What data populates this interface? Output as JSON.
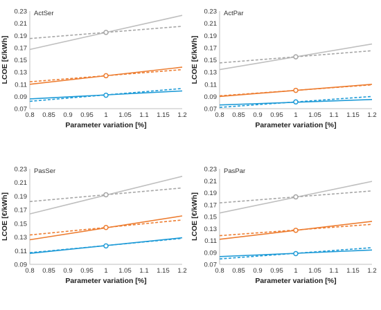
{
  "chart_data": [
    {
      "type": "line",
      "title": "ActSer",
      "xlabel": "Parameter variation [%]",
      "ylabel": "LCOE [€/kWh]",
      "xlim": [
        0.8,
        1.2
      ],
      "ylim": [
        0.07,
        0.23
      ],
      "x_ticks": [
        "0.8",
        "0.85",
        "0.9",
        "0.95",
        "1",
        "1.05",
        "1.1",
        "1.15",
        "1.2"
      ],
      "y_ticks": [
        "0.07",
        "0.09",
        "0.11",
        "0.13",
        "0.15",
        "0.17",
        "0.19",
        "0.21",
        "0.23"
      ],
      "grid": false,
      "x": [
        0.8,
        1.2
      ],
      "series": [
        {
          "color": "#bfbfbf",
          "dash": false,
          "values": [
            0.167,
            0.223
          ]
        },
        {
          "color": "#a6a6a6",
          "dash": true,
          "values": [
            0.185,
            0.205
          ]
        },
        {
          "color": "#ed7d31",
          "dash": false,
          "values": [
            0.11,
            0.138
          ]
        },
        {
          "color": "#ed7d31",
          "dash": true,
          "values": [
            0.114,
            0.134
          ]
        },
        {
          "color": "#1f9bd7",
          "dash": false,
          "values": [
            0.086,
            0.099
          ]
        },
        {
          "color": "#1f9bd7",
          "dash": true,
          "values": [
            0.082,
            0.103
          ]
        }
      ],
      "markers": [
        {
          "x": 1,
          "y": 0.195,
          "color": "#a6a6a6"
        },
        {
          "x": 1,
          "y": 0.124,
          "color": "#ed7d31"
        },
        {
          "x": 1,
          "y": 0.092,
          "color": "#1f9bd7"
        }
      ]
    },
    {
      "type": "line",
      "title": "ActPar",
      "xlabel": "Parameter variation [%]",
      "ylabel": "LCOE [€/kWh]",
      "xlim": [
        0.8,
        1.2
      ],
      "ylim": [
        0.07,
        0.23
      ],
      "x_ticks": [
        "0.8",
        "0.85",
        "0.9",
        "0.95",
        "1",
        "1.05",
        "1.1",
        "1.15",
        "1.2"
      ],
      "y_ticks": [
        "0.07",
        "0.09",
        "0.11",
        "0.13",
        "0.15",
        "0.17",
        "0.19",
        "0.21",
        "0.23"
      ],
      "grid": false,
      "x": [
        0.8,
        1.2
      ],
      "series": [
        {
          "color": "#bfbfbf",
          "dash": false,
          "values": [
            0.134,
            0.176
          ]
        },
        {
          "color": "#a6a6a6",
          "dash": true,
          "values": [
            0.145,
            0.165
          ]
        },
        {
          "color": "#ed7d31",
          "dash": false,
          "values": [
            0.09,
            0.11
          ]
        },
        {
          "color": "#ed7d31",
          "dash": true,
          "values": [
            0.091,
            0.109
          ]
        },
        {
          "color": "#1f9bd7",
          "dash": false,
          "values": [
            0.076,
            0.085
          ]
        },
        {
          "color": "#1f9bd7",
          "dash": true,
          "values": [
            0.072,
            0.09
          ]
        }
      ],
      "markers": [
        {
          "x": 1,
          "y": 0.155,
          "color": "#a6a6a6"
        },
        {
          "x": 1,
          "y": 0.1,
          "color": "#ed7d31"
        },
        {
          "x": 1,
          "y": 0.081,
          "color": "#1f9bd7"
        }
      ]
    },
    {
      "type": "line",
      "title": "PasSer",
      "xlabel": "Parameter variation [%]",
      "ylabel": "LCOE [€/kWh]",
      "xlim": [
        0.8,
        1.2
      ],
      "ylim": [
        0.09,
        0.23
      ],
      "x_ticks": [
        "0.8",
        "0.85",
        "0.9",
        "0.95",
        "1",
        "1.05",
        "1.1",
        "1.15",
        "1.2"
      ],
      "y_ticks": [
        "0.09",
        "0.11",
        "0.13",
        "0.15",
        "0.17",
        "0.19",
        "0.21",
        "0.23"
      ],
      "grid": false,
      "x": [
        0.8,
        1.2
      ],
      "series": [
        {
          "color": "#bfbfbf",
          "dash": false,
          "values": [
            0.164,
            0.219
          ]
        },
        {
          "color": "#a6a6a6",
          "dash": true,
          "values": [
            0.182,
            0.202
          ]
        },
        {
          "color": "#ed7d31",
          "dash": false,
          "values": [
            0.126,
            0.161
          ]
        },
        {
          "color": "#ed7d31",
          "dash": true,
          "values": [
            0.133,
            0.155
          ]
        },
        {
          "color": "#1f9bd7",
          "dash": false,
          "values": [
            0.106,
            0.129
          ]
        },
        {
          "color": "#1f9bd7",
          "dash": true,
          "values": [
            0.107,
            0.128
          ]
        }
      ],
      "markers": [
        {
          "x": 1,
          "y": 0.192,
          "color": "#a6a6a6"
        },
        {
          "x": 1,
          "y": 0.144,
          "color": "#ed7d31"
        },
        {
          "x": 1,
          "y": 0.117,
          "color": "#1f9bd7"
        }
      ]
    },
    {
      "type": "line",
      "title": "PasPar",
      "xlabel": "Parameter variation [%]",
      "ylabel": "LCOE [€/kWh]",
      "xlim": [
        0.8,
        1.2
      ],
      "ylim": [
        0.07,
        0.23
      ],
      "x_ticks": [
        "0.8",
        "0.85",
        "0.9",
        "0.95",
        "1",
        "1.05",
        "1.1",
        "1.15",
        "1.2"
      ],
      "y_ticks": [
        "0.07",
        "0.09",
        "0.11",
        "0.13",
        "0.15",
        "0.17",
        "0.19",
        "0.21",
        "0.23"
      ],
      "grid": false,
      "x": [
        0.8,
        1.2
      ],
      "series": [
        {
          "color": "#bfbfbf",
          "dash": false,
          "values": [
            0.156,
            0.209
          ]
        },
        {
          "color": "#a6a6a6",
          "dash": true,
          "values": [
            0.173,
            0.193
          ]
        },
        {
          "color": "#ed7d31",
          "dash": false,
          "values": [
            0.112,
            0.142
          ]
        },
        {
          "color": "#ed7d31",
          "dash": true,
          "values": [
            0.118,
            0.137
          ]
        },
        {
          "color": "#1f9bd7",
          "dash": false,
          "values": [
            0.083,
            0.094
          ]
        },
        {
          "color": "#1f9bd7",
          "dash": true,
          "values": [
            0.079,
            0.098
          ]
        }
      ],
      "markers": [
        {
          "x": 1,
          "y": 0.183,
          "color": "#a6a6a6"
        },
        {
          "x": 1,
          "y": 0.127,
          "color": "#ed7d31"
        },
        {
          "x": 1,
          "y": 0.088,
          "color": "#1f9bd7"
        }
      ]
    }
  ]
}
